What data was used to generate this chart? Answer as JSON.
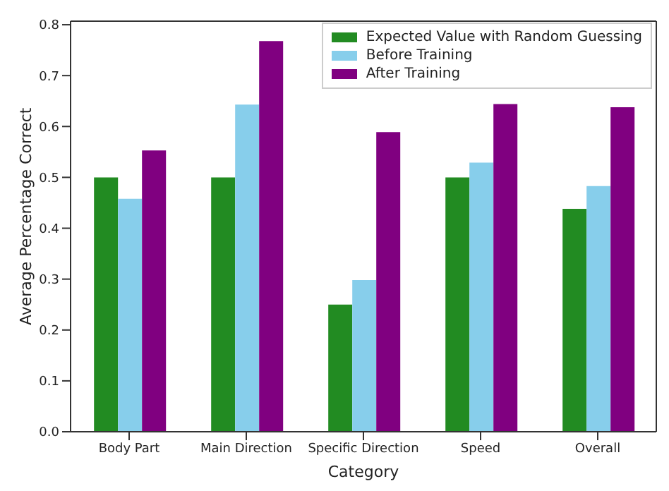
{
  "chart_data": {
    "type": "bar",
    "xlabel": "Category",
    "ylabel": "Average Percentage Correct",
    "categories": [
      "Body Part",
      "Main Direction",
      "Specific Direction",
      "Speed",
      "Overall"
    ],
    "series": [
      {
        "name": "Expected Value with Random Guessing",
        "color": "#228b22",
        "values": [
          0.5,
          0.5,
          0.25,
          0.5,
          0.438
        ]
      },
      {
        "name": "Before Training",
        "color": "#87ceeb",
        "values": [
          0.458,
          0.643,
          0.298,
          0.529,
          0.483
        ]
      },
      {
        "name": "After Training",
        "color": "#800080",
        "values": [
          0.553,
          0.768,
          0.589,
          0.644,
          0.638
        ]
      }
    ],
    "ylim": [
      0,
      0.807
    ],
    "yticks": [
      {
        "value": 0,
        "label": "0.0"
      },
      0.1,
      0.2,
      0.3,
      0.4,
      0.5,
      0.6,
      0.7,
      0.8
    ],
    "grid": false,
    "legend": "top right"
  }
}
